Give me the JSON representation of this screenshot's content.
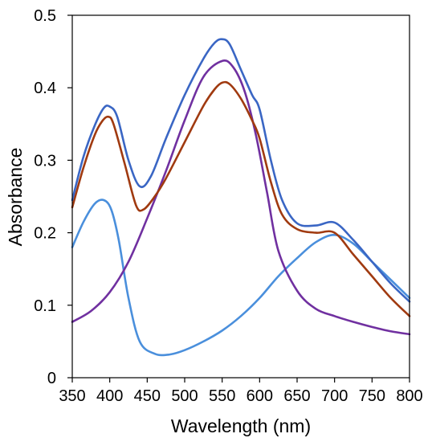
{
  "chart_data": {
    "type": "line",
    "xlabel": "Wavelength (nm)",
    "ylabel": "Absorbance",
    "xlim": [
      350,
      800
    ],
    "ylim": [
      0,
      0.5
    ],
    "xticks": [
      350,
      400,
      450,
      500,
      550,
      600,
      650,
      700,
      750,
      800
    ],
    "yticks": [
      0,
      0.1,
      0.2,
      0.3,
      0.4,
      0.5
    ],
    "ytick_labels": [
      "0",
      "0.1",
      "0.2",
      "0.3",
      "0.4",
      "0.5"
    ],
    "grid": false,
    "legend": "none",
    "series": [
      {
        "color": "#4a8fdc",
        "x": [
          350,
          365,
          380,
          392,
          402,
          412,
          425,
          440,
          460,
          480,
          500,
          525,
          550,
          575,
          600,
          625,
          650,
          675,
          700,
          725,
          750,
          775,
          800
        ],
        "y": [
          0.18,
          0.215,
          0.24,
          0.245,
          0.232,
          0.19,
          0.11,
          0.05,
          0.033,
          0.032,
          0.038,
          0.05,
          0.065,
          0.085,
          0.11,
          0.14,
          0.165,
          0.187,
          0.197,
          0.185,
          0.16,
          0.135,
          0.11
        ]
      },
      {
        "color": "#7030a0",
        "x": [
          350,
          375,
          400,
          425,
          450,
          475,
          500,
          525,
          550,
          565,
          580,
          595,
          610,
          625,
          650,
          675,
          700,
          725,
          750,
          775,
          800
        ],
        "y": [
          0.077,
          0.092,
          0.118,
          0.16,
          0.22,
          0.285,
          0.355,
          0.415,
          0.437,
          0.428,
          0.395,
          0.335,
          0.255,
          0.175,
          0.12,
          0.095,
          0.085,
          0.077,
          0.07,
          0.064,
          0.06
        ]
      },
      {
        "color": "#a03a10",
        "x": [
          350,
          365,
          380,
          390,
          398,
          405,
          420,
          435,
          445,
          460,
          475,
          500,
          525,
          540,
          550,
          560,
          575,
          590,
          600,
          615,
          630,
          650,
          675,
          700,
          725,
          750,
          775,
          800
        ],
        "y": [
          0.235,
          0.29,
          0.335,
          0.354,
          0.36,
          0.35,
          0.295,
          0.238,
          0.232,
          0.25,
          0.275,
          0.325,
          0.375,
          0.398,
          0.407,
          0.405,
          0.385,
          0.355,
          0.33,
          0.27,
          0.225,
          0.205,
          0.2,
          0.2,
          0.17,
          0.14,
          0.11,
          0.085
        ]
      },
      {
        "color": "#3a66c4",
        "x": [
          350,
          365,
          380,
          392,
          400,
          410,
          425,
          440,
          455,
          475,
          500,
          525,
          540,
          550,
          560,
          575,
          590,
          600,
          615,
          630,
          650,
          675,
          700,
          725,
          750,
          775,
          800
        ],
        "y": [
          0.245,
          0.305,
          0.348,
          0.372,
          0.374,
          0.36,
          0.3,
          0.264,
          0.278,
          0.33,
          0.39,
          0.44,
          0.462,
          0.467,
          0.46,
          0.425,
          0.39,
          0.37,
          0.3,
          0.245,
          0.213,
          0.21,
          0.214,
          0.19,
          0.16,
          0.13,
          0.105
        ]
      }
    ]
  }
}
